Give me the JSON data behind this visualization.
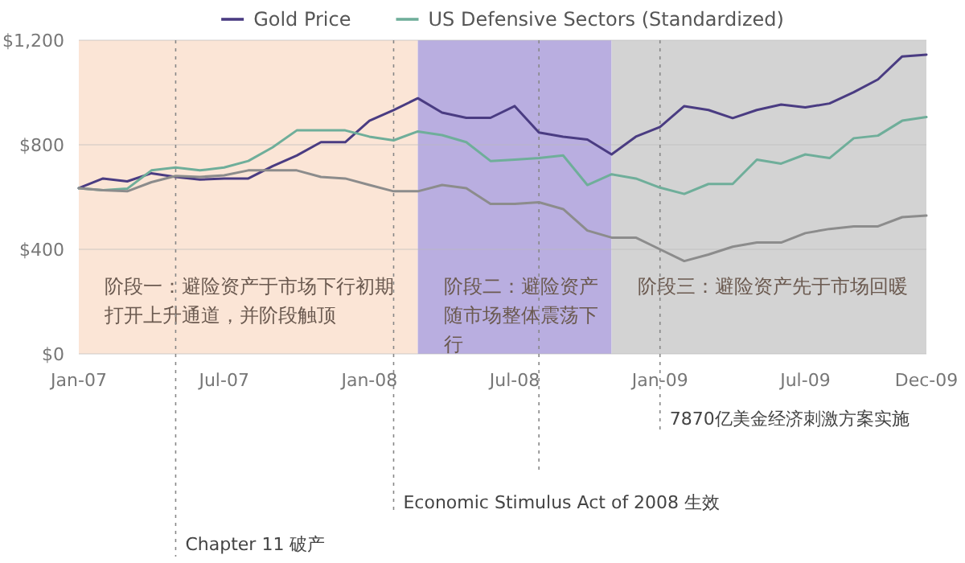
{
  "chart_data": {
    "type": "line",
    "x": [
      "2007-01",
      "2007-02",
      "2007-03",
      "2007-04",
      "2007-05",
      "2007-06",
      "2007-07",
      "2007-08",
      "2007-09",
      "2007-10",
      "2007-11",
      "2007-12",
      "2008-01",
      "2008-02",
      "2008-03",
      "2008-04",
      "2008-05",
      "2008-06",
      "2008-07",
      "2008-08",
      "2008-09",
      "2008-10",
      "2008-11",
      "2008-12",
      "2009-01",
      "2009-02",
      "2009-03",
      "2009-04",
      "2009-05",
      "2009-06",
      "2009-07",
      "2009-08",
      "2009-09",
      "2009-10",
      "2009-11",
      "2009-12"
    ],
    "series": [
      {
        "name": "Gold Price",
        "color": "#4a3c82",
        "values": [
          634,
          671,
          660,
          691,
          677,
          667,
          671,
          671,
          718,
          759,
          810,
          810,
          892,
          933,
          978,
          923,
          903,
          903,
          948,
          847,
          831,
          820,
          763,
          831,
          868,
          948,
          933,
          902,
          933,
          954,
          943,
          958,
          1001,
          1050,
          1138,
          1145
        ]
      },
      {
        "name": "US Defensive Sectors (Standardized)",
        "color": "#6fae9a",
        "values": [
          634,
          626,
          632,
          702,
          713,
          702,
          713,
          738,
          790,
          855,
          855,
          855,
          831,
          817,
          851,
          837,
          810,
          738,
          743,
          749,
          759,
          646,
          687,
          671,
          636,
          612,
          650,
          650,
          743,
          728,
          763,
          749,
          825,
          835,
          892,
          906
        ]
      },
      {
        "color": "#8c8c8c",
        "values": [
          634,
          626,
          622,
          657,
          681,
          677,
          683,
          702,
          702,
          702,
          677,
          671,
          646,
          622,
          622,
          646,
          634,
          574,
          574,
          580,
          554,
          472,
          445,
          445,
          400,
          355,
          380,
          410,
          426,
          426,
          462,
          478,
          488,
          488,
          523,
          529
        ]
      }
    ],
    "xlim": [
      "2007-01",
      "2009-12"
    ],
    "xticks": [
      {
        "value": "2007-01",
        "label": "Jan-07"
      },
      {
        "value": "2007-07",
        "label": "Jul-07"
      },
      {
        "value": "2008-01",
        "label": "Jan-08"
      },
      {
        "value": "2008-07",
        "label": "Jul-08"
      },
      {
        "value": "2009-01",
        "label": "Jan-09"
      },
      {
        "value": "2009-07",
        "label": "Jul-09"
      },
      {
        "value": "2009-12",
        "label": "Dec-09"
      }
    ],
    "ylim": [
      0,
      1200
    ],
    "yticks": [
      {
        "value": 0,
        "label": "$0"
      },
      {
        "value": 400,
        "label": "$400"
      },
      {
        "value": 800,
        "label": "$800"
      },
      {
        "value": 1200,
        "label": "$1,200"
      }
    ],
    "bands": [
      {
        "axis": "x",
        "from": "2007-01",
        "to": "2008-03",
        "color": "#fbe5d6",
        "label": "阶段一：避险资产于市场下行初期打开上升通道，并阶段触顶"
      },
      {
        "axis": "x",
        "from": "2008-03",
        "to": "2008-11",
        "color": "#b9aee0",
        "label": "阶段二：避险资产随市场整体震荡下行"
      },
      {
        "axis": "x",
        "from": "2008-11",
        "to": "2009-12",
        "color": "#d3d3d3",
        "label": "阶段三：避险资产先于市场回暖"
      }
    ],
    "ref_lines": [
      {
        "axis": "x",
        "value": "2009-01",
        "label": "7870亿美金经济刺激方案实施",
        "line_style": "dotted"
      },
      {
        "axis": "x",
        "value": "2008-08",
        "line_style": "dotted"
      },
      {
        "axis": "x",
        "value": "2008-02",
        "label": "Economic Stimulus Act of 2008 生效",
        "line_style": "dotted"
      },
      {
        "axis": "x",
        "value": "2007-05",
        "label": "Chapter 11 破产",
        "line_style": "dotted"
      }
    ],
    "grid": "y",
    "legend": "top",
    "line_style": "solid",
    "marker": "none"
  }
}
